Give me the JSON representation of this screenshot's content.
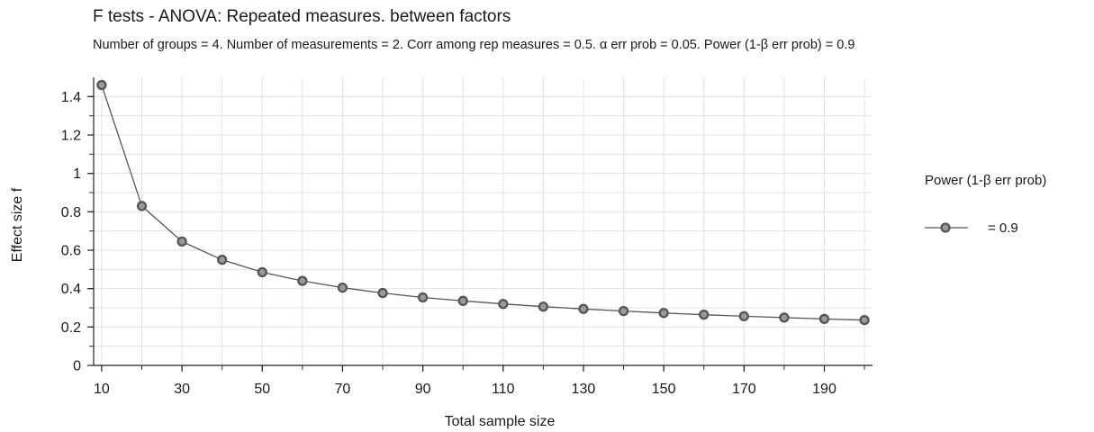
{
  "chart_data": {
    "type": "line",
    "title": "F tests - ANOVA: Repeated measures. between factors",
    "subtitle": "Number of groups = 4. Number of measurements = 2. Corr among rep measures = 0.5. α err prob = 0.05. Power (1-β err prob) = 0.9",
    "xlabel": "Total sample size",
    "ylabel": "Effect size f",
    "xlim": [
      8,
      202
    ],
    "ylim": [
      0,
      1.5
    ],
    "x_ticks": [
      10,
      30,
      50,
      70,
      90,
      110,
      130,
      150,
      170,
      190
    ],
    "y_ticks": [
      0,
      0.2,
      0.4,
      0.6,
      0.8,
      1,
      1.2,
      1.4
    ],
    "y_tick_labels": [
      "0",
      "0.2",
      "0.4",
      "0.6",
      "0.8",
      "1",
      "1.2",
      "1.4"
    ],
    "grid": true,
    "legend_title": "Power (1-β err prob)",
    "legend_position": "right",
    "series": [
      {
        "name": "= 0.9",
        "color": "#555555",
        "x": [
          10,
          20,
          30,
          40,
          50,
          60,
          70,
          80,
          90,
          100,
          110,
          120,
          130,
          140,
          150,
          160,
          170,
          180,
          190,
          200
        ],
        "y": [
          1.46,
          0.83,
          0.645,
          0.55,
          0.485,
          0.44,
          0.405,
          0.377,
          0.354,
          0.336,
          0.32,
          0.306,
          0.294,
          0.283,
          0.273,
          0.264,
          0.256,
          0.249,
          0.242,
          0.236
        ]
      }
    ]
  }
}
